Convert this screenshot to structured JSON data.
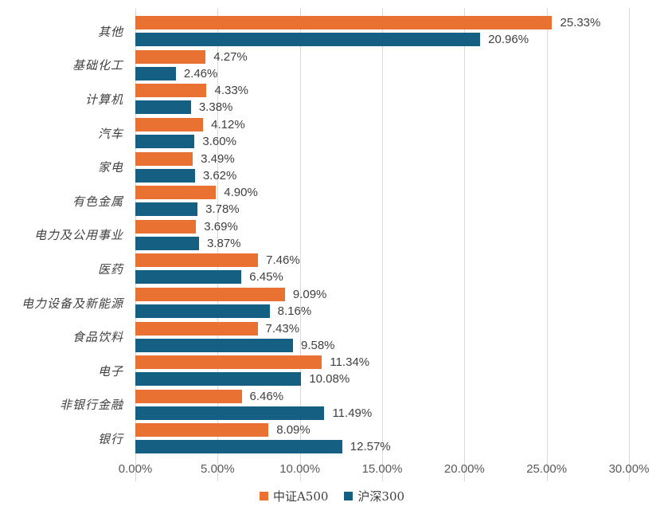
{
  "chart_data": {
    "type": "bar",
    "orientation": "horizontal",
    "title": "",
    "categories": [
      "其他",
      "基础化工",
      "计算机",
      "汽车",
      "家电",
      "有色金属",
      "电力及公用事业",
      "医药",
      "电力设备及新能源",
      "食品饮料",
      "电子",
      "非银行金融",
      "银行"
    ],
    "series": [
      {
        "name": "中证A500",
        "color": "#E97132",
        "values": [
          25.33,
          4.27,
          4.33,
          4.12,
          3.49,
          4.9,
          3.69,
          7.46,
          9.09,
          7.43,
          11.34,
          6.46,
          8.09
        ]
      },
      {
        "name": "沪深300",
        "color": "#156082",
        "values": [
          20.96,
          2.46,
          3.38,
          3.6,
          3.62,
          3.78,
          3.87,
          6.45,
          8.16,
          9.58,
          10.08,
          11.49,
          12.57
        ]
      }
    ],
    "x_ticks": [
      "0.00%",
      "5.00%",
      "10.00%",
      "15.00%",
      "20.00%",
      "25.00%",
      "30.00%"
    ],
    "xlim": [
      0,
      30
    ],
    "value_label_suffix": "%",
    "value_label_decimals": 2,
    "grid": true,
    "grid_color": "#D9D9D9",
    "tick_label_color": "#595959",
    "data_label_color": "#404040",
    "legend_position": "bottom"
  }
}
